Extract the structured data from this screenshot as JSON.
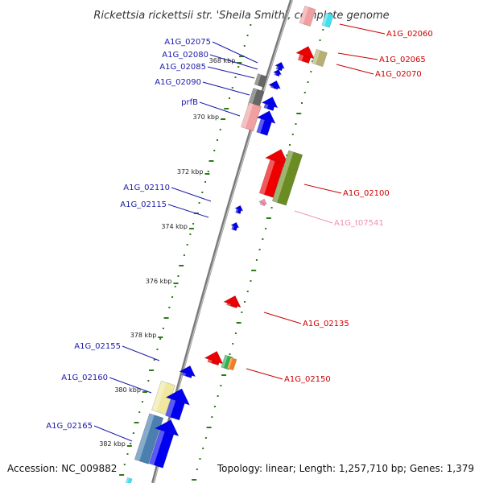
{
  "title": "Rickettsia rickettsii str. 'Sheila Smith', complete genome",
  "footer": {
    "accession": "Accession: NC_009882",
    "topology": "Topology: linear; Length: 1,257,710 bp; Genes: 1,379"
  },
  "colors": {
    "backbone": "#777777",
    "tick": "#2d7a1a",
    "forward_label": "#1a1aa8",
    "reverse_label": "#cc0000",
    "trna_label": "#f090b0",
    "forward_gene": "#0000ee",
    "reverse_gene": "#ee0000",
    "pseudo_yellow": "#f0e8a0",
    "steel_blue": "#4a7fb0",
    "olive": "#6b8c22",
    "khaki": "#b8b070",
    "gray_gene": "#666666",
    "pink_gene": "#f0a0a0",
    "cyan_gene": "#40e0f0",
    "green_gene": "#30b050",
    "orange_gene": "#f08020"
  },
  "kbp_ticks": [
    "368 kbp",
    "370 kbp",
    "372 kbp",
    "374 kbp",
    "376 kbp",
    "378 kbp",
    "380 kbp",
    "382 kbp"
  ],
  "forward_labels": [
    "A1G_02075",
    "A1G_02080",
    "A1G_02085",
    "A1G_02090",
    "prfB",
    "A1G_02110",
    "A1G_02115",
    "A1G_02155",
    "A1G_02160",
    "A1G_02165"
  ],
  "reverse_labels": [
    "A1G_02060",
    "A1G_02065",
    "A1G_02070",
    "A1G_02100",
    "A1G_t07541",
    "A1G_02135",
    "A1G_02150"
  ]
}
